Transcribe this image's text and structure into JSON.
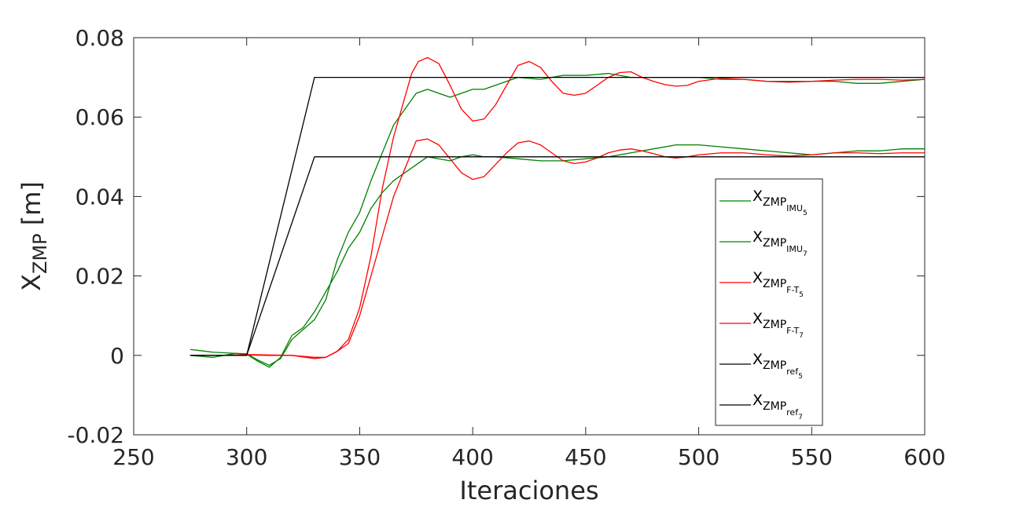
{
  "chart_data": {
    "type": "line",
    "xlabel": "Iteraciones",
    "ylabel": {
      "main": "X",
      "sub": "ZMP",
      "unit": " [m]"
    },
    "xlim": [
      250,
      600
    ],
    "ylim": [
      -0.02,
      0.08
    ],
    "xticks": [
      "250",
      "300",
      "350",
      "400",
      "450",
      "500",
      "550",
      "600"
    ],
    "yticks": [
      "-0.02",
      "0",
      "0.02",
      "0.04",
      "0.06",
      "0.08"
    ],
    "grid": false,
    "legend_position": "right",
    "series": [
      {
        "label": {
          "base": "X",
          "sub": "ZMP",
          "subsub": "IMU",
          "subsubsub": "5"
        },
        "color": "#008000",
        "points": [
          [
            275,
            0.0
          ],
          [
            285,
            -0.0005
          ],
          [
            295,
            0.0005
          ],
          [
            300,
            0.0003
          ],
          [
            305,
            -0.0015
          ],
          [
            310,
            -0.003
          ],
          [
            315,
            -0.0005
          ],
          [
            320,
            0.005
          ],
          [
            325,
            0.007
          ],
          [
            330,
            0.011
          ],
          [
            335,
            0.016
          ],
          [
            340,
            0.021
          ],
          [
            345,
            0.027
          ],
          [
            350,
            0.031
          ],
          [
            355,
            0.037
          ],
          [
            360,
            0.041
          ],
          [
            365,
            0.044
          ],
          [
            370,
            0.046
          ],
          [
            375,
            0.048
          ],
          [
            380,
            0.05
          ],
          [
            385,
            0.0495
          ],
          [
            390,
            0.049
          ],
          [
            395,
            0.05
          ],
          [
            400,
            0.0505
          ],
          [
            405,
            0.05
          ],
          [
            410,
            0.05
          ],
          [
            420,
            0.0495
          ],
          [
            430,
            0.049
          ],
          [
            440,
            0.049
          ],
          [
            450,
            0.0495
          ],
          [
            460,
            0.05
          ],
          [
            470,
            0.051
          ],
          [
            480,
            0.052
          ],
          [
            490,
            0.053
          ],
          [
            500,
            0.053
          ],
          [
            510,
            0.0525
          ],
          [
            520,
            0.052
          ],
          [
            530,
            0.0515
          ],
          [
            540,
            0.051
          ],
          [
            550,
            0.0505
          ],
          [
            560,
            0.051
          ],
          [
            570,
            0.0515
          ],
          [
            580,
            0.0515
          ],
          [
            590,
            0.052
          ],
          [
            600,
            0.052
          ]
        ]
      },
      {
        "label": {
          "base": "X",
          "sub": "ZMP",
          "subsub": "IMU",
          "subsubsub": "7"
        },
        "color": "#008000",
        "points": [
          [
            275,
            0.0015
          ],
          [
            285,
            0.0008
          ],
          [
            295,
            0.0005
          ],
          [
            300,
            0.0004
          ],
          [
            305,
            -0.0012
          ],
          [
            310,
            -0.0025
          ],
          [
            315,
            -0.0008
          ],
          [
            320,
            0.004
          ],
          [
            325,
            0.0065
          ],
          [
            330,
            0.009
          ],
          [
            335,
            0.014
          ],
          [
            340,
            0.024
          ],
          [
            345,
            0.031
          ],
          [
            350,
            0.036
          ],
          [
            355,
            0.044
          ],
          [
            360,
            0.051
          ],
          [
            365,
            0.058
          ],
          [
            370,
            0.062
          ],
          [
            375,
            0.066
          ],
          [
            380,
            0.067
          ],
          [
            385,
            0.066
          ],
          [
            390,
            0.065
          ],
          [
            395,
            0.066
          ],
          [
            400,
            0.067
          ],
          [
            405,
            0.067
          ],
          [
            410,
            0.068
          ],
          [
            420,
            0.07
          ],
          [
            430,
            0.0695
          ],
          [
            440,
            0.0705
          ],
          [
            450,
            0.0705
          ],
          [
            460,
            0.071
          ],
          [
            470,
            0.07
          ],
          [
            480,
            0.07
          ],
          [
            490,
            0.07
          ],
          [
            500,
            0.07
          ],
          [
            510,
            0.0695
          ],
          [
            520,
            0.0695
          ],
          [
            530,
            0.069
          ],
          [
            540,
            0.069
          ],
          [
            550,
            0.069
          ],
          [
            560,
            0.069
          ],
          [
            570,
            0.0685
          ],
          [
            580,
            0.0685
          ],
          [
            590,
            0.069
          ],
          [
            600,
            0.0695
          ]
        ]
      },
      {
        "label": {
          "base": "X",
          "sub": "ZMP",
          "subsub": "F-T",
          "subsubsub": "5"
        },
        "color": "#ff0000",
        "points": [
          [
            275,
            0.0
          ],
          [
            290,
            0.0
          ],
          [
            300,
            0.0001
          ],
          [
            310,
            0.0
          ],
          [
            320,
            0.0
          ],
          [
            330,
            -0.0005
          ],
          [
            335,
            -0.0005
          ],
          [
            340,
            0.001
          ],
          [
            345,
            0.003
          ],
          [
            350,
            0.01
          ],
          [
            355,
            0.02
          ],
          [
            360,
            0.03
          ],
          [
            365,
            0.04
          ],
          [
            370,
            0.047
          ],
          [
            375,
            0.054
          ],
          [
            380,
            0.0545
          ],
          [
            385,
            0.053
          ],
          [
            390,
            0.0495
          ],
          [
            395,
            0.046
          ],
          [
            400,
            0.0443
          ],
          [
            405,
            0.045
          ],
          [
            410,
            0.048
          ],
          [
            415,
            0.051
          ],
          [
            420,
            0.0535
          ],
          [
            425,
            0.054
          ],
          [
            430,
            0.053
          ],
          [
            435,
            0.051
          ],
          [
            440,
            0.049
          ],
          [
            445,
            0.0483
          ],
          [
            450,
            0.0487
          ],
          [
            455,
            0.0497
          ],
          [
            460,
            0.051
          ],
          [
            465,
            0.0517
          ],
          [
            470,
            0.052
          ],
          [
            475,
            0.0515
          ],
          [
            480,
            0.0508
          ],
          [
            485,
            0.05
          ],
          [
            490,
            0.0497
          ],
          [
            495,
            0.05
          ],
          [
            500,
            0.0505
          ],
          [
            510,
            0.051
          ],
          [
            520,
            0.051
          ],
          [
            530,
            0.0505
          ],
          [
            540,
            0.0502
          ],
          [
            550,
            0.0505
          ],
          [
            560,
            0.051
          ],
          [
            570,
            0.051
          ],
          [
            580,
            0.0508
          ],
          [
            590,
            0.051
          ],
          [
            600,
            0.051
          ]
        ]
      },
      {
        "label": {
          "base": "X",
          "sub": "ZMP",
          "subsub": "F-T",
          "subsubsub": "7"
        },
        "color": "#ff0000",
        "points": [
          [
            275,
            0.0
          ],
          [
            290,
            0.0
          ],
          [
            300,
            0.0002
          ],
          [
            310,
            0.0001
          ],
          [
            320,
            0.0
          ],
          [
            330,
            -0.0008
          ],
          [
            335,
            -0.0005
          ],
          [
            340,
            0.001
          ],
          [
            345,
            0.004
          ],
          [
            350,
            0.012
          ],
          [
            355,
            0.025
          ],
          [
            360,
            0.042
          ],
          [
            365,
            0.055
          ],
          [
            370,
            0.065
          ],
          [
            373,
            0.071
          ],
          [
            376,
            0.074
          ],
          [
            380,
            0.075
          ],
          [
            385,
            0.0735
          ],
          [
            390,
            0.068
          ],
          [
            395,
            0.062
          ],
          [
            400,
            0.059
          ],
          [
            405,
            0.0595
          ],
          [
            410,
            0.063
          ],
          [
            415,
            0.068
          ],
          [
            420,
            0.073
          ],
          [
            425,
            0.074
          ],
          [
            430,
            0.0725
          ],
          [
            435,
            0.069
          ],
          [
            440,
            0.066
          ],
          [
            445,
            0.0655
          ],
          [
            450,
            0.066
          ],
          [
            455,
            0.068
          ],
          [
            460,
            0.07
          ],
          [
            465,
            0.0712
          ],
          [
            470,
            0.0714
          ],
          [
            475,
            0.07
          ],
          [
            480,
            0.069
          ],
          [
            485,
            0.0682
          ],
          [
            490,
            0.0678
          ],
          [
            495,
            0.068
          ],
          [
            500,
            0.069
          ],
          [
            510,
            0.0698
          ],
          [
            520,
            0.0695
          ],
          [
            530,
            0.069
          ],
          [
            540,
            0.0688
          ],
          [
            550,
            0.069
          ],
          [
            560,
            0.0693
          ],
          [
            570,
            0.0695
          ],
          [
            580,
            0.0695
          ],
          [
            590,
            0.0693
          ],
          [
            600,
            0.0695
          ]
        ]
      },
      {
        "label": {
          "base": "X",
          "sub": "ZMP",
          "subsub": "ref",
          "subsubsub": "5"
        },
        "color": "#000000",
        "points": [
          [
            275,
            0.0
          ],
          [
            300,
            0.0
          ],
          [
            330,
            0.05
          ],
          [
            600,
            0.05
          ]
        ]
      },
      {
        "label": {
          "base": "X",
          "sub": "ZMP",
          "subsub": "ref",
          "subsubsub": "7"
        },
        "color": "#000000",
        "points": [
          [
            275,
            0.0
          ],
          [
            300,
            0.0
          ],
          [
            330,
            0.07
          ],
          [
            600,
            0.07
          ]
        ]
      }
    ]
  }
}
